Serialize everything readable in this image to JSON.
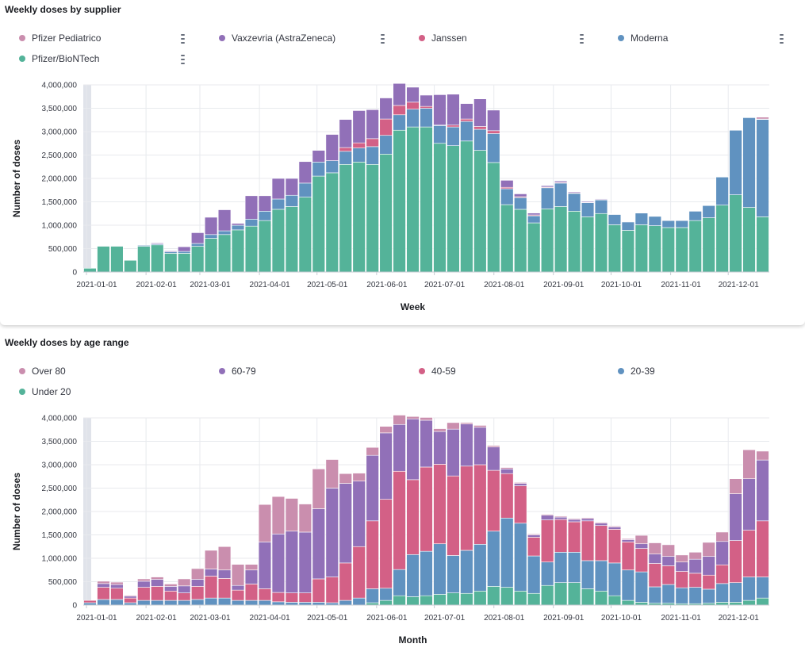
{
  "colors": {
    "pfizer_pediatric": "#CA8EAE",
    "vaxzevria": "#9170B8",
    "janssen": "#D36086",
    "moderna": "#6092C0",
    "pfizer": "#54B399",
    "over80": "#CA8EAE",
    "age6079": "#9170B8",
    "age4059": "#D36086",
    "age2039": "#6092C0",
    "under20": "#54B399",
    "grid": "#e8eaee",
    "axis": "#c7cbd2"
  },
  "panels": {
    "supplier": {
      "title": "Weekly doses by supplier",
      "legend": [
        {
          "label": "Pfizer Pediatrico",
          "color_key": "pfizer_pediatric"
        },
        {
          "label": "Vaxzevria (AstraZeneca)",
          "color_key": "vaxzevria"
        },
        {
          "label": "Janssen",
          "color_key": "janssen"
        },
        {
          "label": "Moderna",
          "color_key": "moderna"
        },
        {
          "label": "Pfizer/BioNTech",
          "color_key": "pfizer"
        }
      ]
    },
    "age": {
      "title": "Weekly doses by age range",
      "legend": [
        {
          "label": "Over 80",
          "color_key": "over80"
        },
        {
          "label": "60-79",
          "color_key": "age6079"
        },
        {
          "label": "40-59",
          "color_key": "age4059"
        },
        {
          "label": "20-39",
          "color_key": "age2039"
        },
        {
          "label": "Under 20",
          "color_key": "under20"
        }
      ]
    }
  },
  "chart_data": [
    {
      "type": "bar",
      "stacked": true,
      "title": "Weekly doses by supplier",
      "xlabel": "Week",
      "ylabel": "Number of doses",
      "ylim": [
        0,
        4000000
      ],
      "yticks": [
        "0",
        "500,000",
        "1,000,000",
        "1,500,000",
        "2,000,000",
        "2,500,000",
        "3,000,000",
        "3,500,000",
        "4,000,000"
      ],
      "ytick_values": [
        0,
        500000,
        1000000,
        1500000,
        2000000,
        2500000,
        3000000,
        3500000,
        4000000
      ],
      "xtick_labels": [
        "2021-01-01",
        "2021-02-01",
        "2021-03-01",
        "2021-04-01",
        "2021-05-01",
        "2021-06-01",
        "2021-07-01",
        "2021-08-01",
        "2021-09-01",
        "2021-10-01",
        "2021-11-01",
        "2021-12-01"
      ],
      "xtick_weeks": [
        0,
        4.43,
        8.43,
        12.86,
        17.14,
        21.57,
        25.86,
        30.29,
        34.71,
        39,
        43.43,
        47.71
      ],
      "grid": true,
      "legend_position": "top",
      "categories": [
        "2020-12-28",
        "2021-01-04",
        "2021-01-11",
        "2021-01-18",
        "2021-01-25",
        "2021-02-01",
        "2021-02-08",
        "2021-02-15",
        "2021-02-22",
        "2021-03-01",
        "2021-03-08",
        "2021-03-15",
        "2021-03-22",
        "2021-03-29",
        "2021-04-05",
        "2021-04-12",
        "2021-04-19",
        "2021-04-26",
        "2021-05-03",
        "2021-05-10",
        "2021-05-17",
        "2021-05-24",
        "2021-05-31",
        "2021-06-07",
        "2021-06-14",
        "2021-06-21",
        "2021-06-28",
        "2021-07-05",
        "2021-07-12",
        "2021-07-19",
        "2021-07-26",
        "2021-08-02",
        "2021-08-09",
        "2021-08-16",
        "2021-08-23",
        "2021-08-30",
        "2021-09-06",
        "2021-09-13",
        "2021-09-20",
        "2021-09-27",
        "2021-10-04",
        "2021-10-11",
        "2021-10-18",
        "2021-10-25",
        "2021-11-01",
        "2021-11-08",
        "2021-11-15",
        "2021-11-22",
        "2021-11-29",
        "2021-12-06",
        "2021-12-13"
      ],
      "series": [
        {
          "name": "Pfizer/BioNTech",
          "color_key": "pfizer",
          "values": [
            80000,
            550000,
            550000,
            250000,
            550000,
            580000,
            400000,
            400000,
            550000,
            720000,
            800000,
            900000,
            980000,
            1100000,
            1340000,
            1400000,
            1600000,
            2050000,
            2120000,
            2300000,
            2350000,
            2300000,
            2520000,
            3030000,
            3100000,
            3100000,
            2750000,
            2700000,
            2800000,
            2600000,
            2340000,
            1440000,
            1340000,
            1050000,
            1350000,
            1400000,
            1300000,
            1180000,
            1250000,
            1010000,
            890000,
            1010000,
            990000,
            950000,
            950000,
            1100000,
            1160000,
            1430000,
            1650000,
            1380000,
            1180000
          ]
        },
        {
          "name": "Moderna",
          "color_key": "moderna",
          "values": [
            0,
            0,
            0,
            0,
            20000,
            20000,
            30000,
            40000,
            60000,
            80000,
            80000,
            100000,
            150000,
            200000,
            220000,
            240000,
            300000,
            300000,
            260000,
            280000,
            300000,
            380000,
            400000,
            330000,
            380000,
            400000,
            380000,
            400000,
            420000,
            450000,
            620000,
            340000,
            250000,
            150000,
            450000,
            500000,
            380000,
            300000,
            290000,
            220000,
            180000,
            250000,
            200000,
            150000,
            150000,
            200000,
            260000,
            600000,
            1380000,
            1920000,
            2080000
          ]
        },
        {
          "name": "Janssen",
          "color_key": "janssen",
          "values": [
            0,
            0,
            0,
            0,
            0,
            0,
            0,
            0,
            0,
            0,
            0,
            0,
            0,
            0,
            0,
            0,
            0,
            0,
            0,
            80000,
            110000,
            170000,
            350000,
            200000,
            150000,
            40000,
            10000,
            40000,
            50000,
            60000,
            60000,
            30000,
            20000,
            20000,
            15000,
            15000,
            15000,
            10000,
            10000,
            10000,
            5000,
            5000,
            5000,
            5000,
            5000,
            5000,
            5000,
            5000,
            5000,
            5000,
            5000
          ]
        },
        {
          "name": "Vaxzevria (AstraZeneca)",
          "color_key": "vaxzevria",
          "values": [
            0,
            0,
            0,
            0,
            0,
            20000,
            20000,
            100000,
            230000,
            370000,
            450000,
            40000,
            500000,
            330000,
            440000,
            360000,
            460000,
            250000,
            560000,
            600000,
            690000,
            620000,
            450000,
            470000,
            320000,
            240000,
            650000,
            660000,
            330000,
            590000,
            440000,
            150000,
            60000,
            40000,
            30000,
            30000,
            20000,
            20000,
            15000,
            10000,
            5000,
            5000,
            5000,
            5000,
            5000,
            5000,
            5000,
            5000,
            5000,
            5000,
            5000
          ]
        },
        {
          "name": "Pfizer Pediatrico",
          "color_key": "pfizer_pediatric",
          "values": [
            0,
            0,
            0,
            0,
            0,
            0,
            0,
            0,
            0,
            0,
            0,
            0,
            0,
            0,
            0,
            0,
            0,
            0,
            0,
            0,
            0,
            0,
            0,
            0,
            0,
            0,
            0,
            0,
            0,
            0,
            0,
            0,
            0,
            0,
            0,
            0,
            0,
            0,
            0,
            0,
            0,
            0,
            0,
            0,
            0,
            0,
            0,
            0,
            0,
            0,
            40000
          ]
        }
      ]
    },
    {
      "type": "bar",
      "stacked": true,
      "title": "Weekly doses by age range",
      "xlabel": "Month",
      "ylabel": "Number of doses",
      "ylim": [
        0,
        4000000
      ],
      "yticks": [
        "0",
        "500,000",
        "1,000,000",
        "1,500,000",
        "2,000,000",
        "2,500,000",
        "3,000,000",
        "3,500,000",
        "4,000,000"
      ],
      "ytick_values": [
        0,
        500000,
        1000000,
        1500000,
        2000000,
        2500000,
        3000000,
        3500000,
        4000000
      ],
      "xtick_labels": [
        "2021-01-01",
        "2021-02-01",
        "2021-03-01",
        "2021-04-01",
        "2021-05-01",
        "2021-06-01",
        "2021-07-01",
        "2021-08-01",
        "2021-09-01",
        "2021-10-01",
        "2021-11-01",
        "2021-12-01"
      ],
      "xtick_weeks": [
        0,
        4.43,
        8.43,
        12.86,
        17.14,
        21.57,
        25.86,
        30.29,
        34.71,
        39,
        43.43,
        47.71
      ],
      "grid": true,
      "legend_position": "top",
      "categories": [
        "2020-12-28",
        "2021-01-04",
        "2021-01-11",
        "2021-01-18",
        "2021-01-25",
        "2021-02-01",
        "2021-02-08",
        "2021-02-15",
        "2021-02-22",
        "2021-03-01",
        "2021-03-08",
        "2021-03-15",
        "2021-03-22",
        "2021-03-29",
        "2021-04-05",
        "2021-04-12",
        "2021-04-19",
        "2021-04-26",
        "2021-05-03",
        "2021-05-10",
        "2021-05-17",
        "2021-05-24",
        "2021-05-31",
        "2021-06-07",
        "2021-06-14",
        "2021-06-21",
        "2021-06-28",
        "2021-07-05",
        "2021-07-12",
        "2021-07-19",
        "2021-07-26",
        "2021-08-02",
        "2021-08-09",
        "2021-08-16",
        "2021-08-23",
        "2021-08-30",
        "2021-09-06",
        "2021-09-13",
        "2021-09-20",
        "2021-09-27",
        "2021-10-04",
        "2021-10-11",
        "2021-10-18",
        "2021-10-25",
        "2021-11-01",
        "2021-11-08",
        "2021-11-15",
        "2021-11-22",
        "2021-11-29",
        "2021-12-06",
        "2021-12-13"
      ],
      "series": [
        {
          "name": "Under 20",
          "color_key": "under20",
          "values": [
            0,
            0,
            0,
            0,
            0,
            0,
            0,
            0,
            0,
            0,
            0,
            0,
            0,
            0,
            0,
            0,
            0,
            0,
            0,
            0,
            0,
            50000,
            100000,
            200000,
            180000,
            200000,
            230000,
            260000,
            250000,
            300000,
            400000,
            380000,
            300000,
            250000,
            420000,
            480000,
            480000,
            350000,
            300000,
            200000,
            100000,
            60000,
            40000,
            40000,
            30000,
            30000,
            40000,
            60000,
            60000,
            100000,
            150000
          ]
        },
        {
          "name": "20-39",
          "color_key": "age2039",
          "values": [
            50000,
            120000,
            120000,
            50000,
            100000,
            100000,
            100000,
            100000,
            120000,
            150000,
            150000,
            100000,
            100000,
            100000,
            70000,
            60000,
            60000,
            60000,
            50000,
            100000,
            150000,
            300000,
            260000,
            560000,
            900000,
            950000,
            1080000,
            800000,
            920000,
            1000000,
            1180000,
            1480000,
            1450000,
            800000,
            500000,
            650000,
            650000,
            600000,
            650000,
            700000,
            650000,
            650000,
            350000,
            400000,
            340000,
            350000,
            300000,
            400000,
            420000,
            500000,
            450000
          ]
        },
        {
          "name": "40-59",
          "color_key": "age4059",
          "values": [
            50000,
            260000,
            240000,
            100000,
            280000,
            300000,
            200000,
            160000,
            280000,
            470000,
            420000,
            220000,
            350000,
            250000,
            200000,
            200000,
            200000,
            500000,
            550000,
            800000,
            1100000,
            1450000,
            1900000,
            2100000,
            1600000,
            1800000,
            1700000,
            1700000,
            1800000,
            1700000,
            1300000,
            950000,
            800000,
            400000,
            900000,
            700000,
            650000,
            850000,
            750000,
            720000,
            600000,
            500000,
            500000,
            400000,
            350000,
            300000,
            300000,
            400000,
            900000,
            1000000,
            1200000
          ]
        },
        {
          "name": "60-79",
          "color_key": "age6079",
          "values": [
            0,
            80000,
            80000,
            40000,
            130000,
            150000,
            100000,
            150000,
            150000,
            150000,
            180000,
            100000,
            300000,
            1000000,
            1250000,
            1320000,
            1300000,
            1500000,
            1900000,
            1700000,
            1400000,
            1400000,
            1420000,
            1000000,
            1300000,
            1000000,
            700000,
            1000000,
            900000,
            800000,
            500000,
            100000,
            50000,
            50000,
            100000,
            50000,
            50000,
            50000,
            50000,
            50000,
            50000,
            100000,
            200000,
            200000,
            200000,
            300000,
            400000,
            500000,
            1000000,
            1100000,
            1300000
          ]
        },
        {
          "name": "Over 80",
          "color_key": "over80",
          "values": [
            0,
            50000,
            50000,
            20000,
            50000,
            50000,
            50000,
            150000,
            230000,
            400000,
            500000,
            450000,
            120000,
            800000,
            800000,
            700000,
            600000,
            850000,
            610000,
            210000,
            170000,
            170000,
            140000,
            200000,
            50000,
            60000,
            60000,
            140000,
            30000,
            40000,
            30000,
            30000,
            20000,
            20000,
            20000,
            20000,
            20000,
            20000,
            20000,
            20000,
            20000,
            180000,
            240000,
            250000,
            150000,
            150000,
            300000,
            200000,
            320000,
            620000,
            190000
          ]
        }
      ]
    }
  ]
}
